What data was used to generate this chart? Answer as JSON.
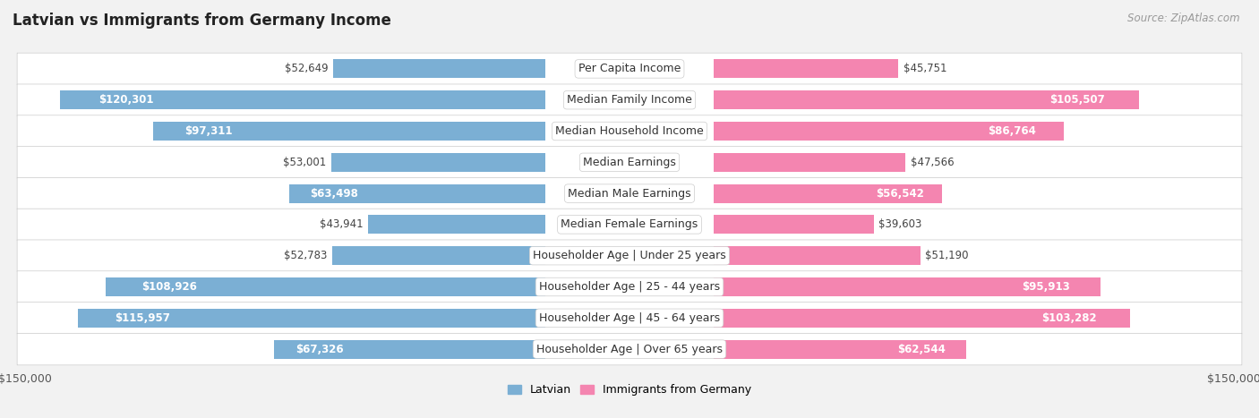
{
  "title": "Latvian vs Immigrants from Germany Income",
  "source": "Source: ZipAtlas.com",
  "categories": [
    "Per Capita Income",
    "Median Family Income",
    "Median Household Income",
    "Median Earnings",
    "Median Male Earnings",
    "Median Female Earnings",
    "Householder Age | Under 25 years",
    "Householder Age | 25 - 44 years",
    "Householder Age | 45 - 64 years",
    "Householder Age | Over 65 years"
  ],
  "latvian_values": [
    52649,
    120301,
    97311,
    53001,
    63498,
    43941,
    52783,
    108926,
    115957,
    67326
  ],
  "immigrant_values": [
    45751,
    105507,
    86764,
    47566,
    56542,
    39603,
    51190,
    95913,
    103282,
    62544
  ],
  "latvian_color": "#7bafd4",
  "immigrant_color": "#f485b0",
  "latvian_label": "Latvian",
  "immigrant_label": "Immigrants from Germany",
  "max_value": 150000,
  "bar_height": 0.6,
  "background_color": "#f2f2f2",
  "row_color": "#ffffff",
  "label_fontsize": 9,
  "title_fontsize": 12,
  "value_fontsize": 8.5,
  "legend_fontsize": 9,
  "inside_threshold": 55000,
  "label_inside_color": "#ffffff",
  "label_outside_color": "#444444"
}
